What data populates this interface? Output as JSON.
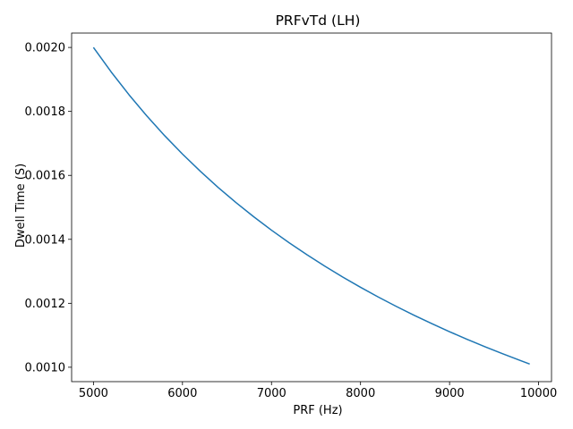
{
  "chart_data": {
    "type": "line",
    "title": "PRFvTd (LH)",
    "xlabel": "PRF (Hz)",
    "ylabel": "Dwell Time (S)",
    "xlim": [
      4755,
      10145
    ],
    "ylim": [
      0.000955,
      0.002045
    ],
    "xticks": [
      5000,
      6000,
      7000,
      8000,
      9000,
      10000
    ],
    "xtick_labels": [
      "5000",
      "6000",
      "7000",
      "8000",
      "9000",
      "10000"
    ],
    "yticks": [
      0.001,
      0.0012,
      0.0014,
      0.0016,
      0.0018,
      0.002
    ],
    "ytick_labels": [
      "0.0010",
      "0.0012",
      "0.0014",
      "0.0016",
      "0.0018",
      "0.0020"
    ],
    "grid": false,
    "series": [
      {
        "color": "#1f77b4",
        "x": [
          5000,
          5200,
          5400,
          5600,
          5800,
          6000,
          6200,
          6400,
          6600,
          6800,
          7000,
          7200,
          7400,
          7600,
          7800,
          8000,
          8200,
          8400,
          8600,
          8800,
          9000,
          9200,
          9400,
          9600,
          9800,
          9900
        ],
        "y": [
          0.002,
          0.0019231,
          0.0018519,
          0.0017857,
          0.0017241,
          0.0016667,
          0.0016129,
          0.0015625,
          0.0015152,
          0.0014706,
          0.0014286,
          0.0013889,
          0.0013514,
          0.0013158,
          0.0012821,
          0.00125,
          0.0012195,
          0.0011905,
          0.0011628,
          0.0011364,
          0.0011111,
          0.001087,
          0.0010638,
          0.0010417,
          0.0010204,
          0.0010101
        ]
      }
    ]
  }
}
